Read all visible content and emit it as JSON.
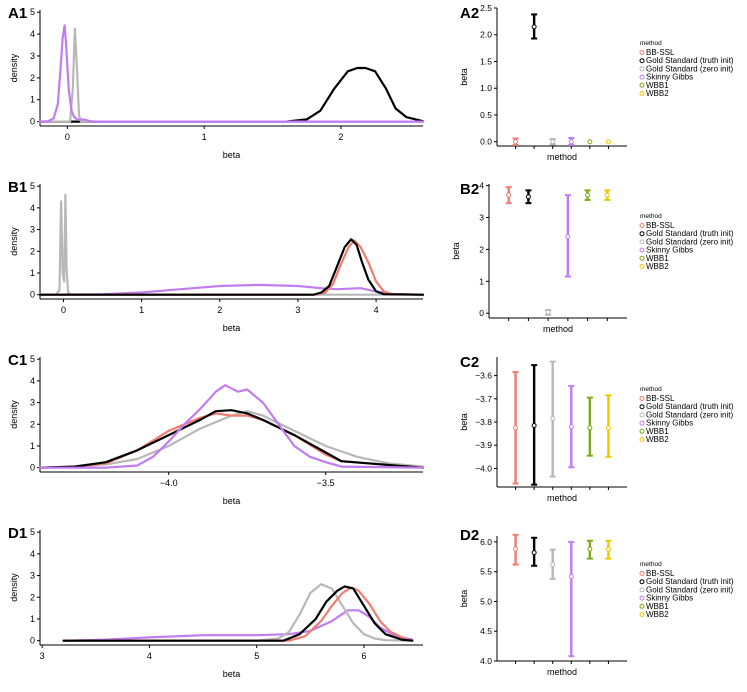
{
  "method_colors": {
    "BB-SSL": "#f07c72",
    "Gold Standard (truth init)": "#000000",
    "Gold Standard (zero init)": "#b8b8b8",
    "Skinny Gibbs": "#c17cf2",
    "WBB1": "#80a818",
    "WBB2": "#f0c800"
  },
  "chart_data": [
    {
      "panel": "A1",
      "type": "line",
      "xlabel": "beta",
      "ylabel": "density",
      "xlim": [
        -0.2,
        2.6
      ],
      "ylim": [
        -0.2,
        5.1
      ],
      "xticks": [
        0,
        1,
        2
      ],
      "yticks": [
        0,
        1,
        2,
        3,
        4,
        5
      ],
      "series": [
        {
          "method": "Gold Standard (truth init)",
          "x": [
            -0.2,
            1.6,
            1.75,
            1.85,
            1.95,
            2.05,
            2.12,
            2.18,
            2.25,
            2.33,
            2.4,
            2.48,
            2.6
          ],
          "y": [
            0,
            0,
            0.1,
            0.5,
            1.5,
            2.3,
            2.45,
            2.45,
            2.3,
            1.5,
            0.6,
            0.2,
            0.02
          ]
        },
        {
          "method": "Gold Standard (zero init)",
          "x": [
            -0.2,
            0.02,
            0.04,
            0.055,
            0.07,
            0.085,
            0.1,
            2.6
          ],
          "y": [
            0,
            0,
            1.5,
            4.25,
            2.5,
            0.3,
            0,
            0
          ]
        },
        {
          "method": "Skinny Gibbs",
          "x": [
            -0.2,
            -0.14,
            -0.1,
            -0.07,
            -0.05,
            -0.035,
            -0.02,
            -0.01,
            0.01,
            0.03,
            0.05,
            0.08,
            0.12,
            0.16,
            0.2,
            2.6
          ],
          "y": [
            0,
            0.02,
            0.15,
            0.8,
            2.4,
            3.8,
            4.4,
            3.6,
            1.5,
            0.5,
            0.2,
            0.08,
            0.1,
            0.03,
            0,
            0
          ]
        }
      ]
    },
    {
      "panel": "A2",
      "type": "errorbar",
      "xlabel": "method",
      "ylabel": "beta",
      "ylim": [
        -0.08,
        2.5
      ],
      "yticks": [
        0.0,
        0.5,
        1.0,
        1.5,
        2.0,
        2.5
      ],
      "ytick_labels": [
        "0.0",
        "0.5",
        "1.0",
        "1.5",
        "2.0",
        "2.5"
      ],
      "categories": [
        "BB-SSL",
        "Gold Standard (truth init)",
        "Gold Standard (zero init)",
        "Skinny Gibbs",
        "WBB1",
        "WBB2"
      ],
      "values": [
        0.0,
        2.15,
        0.0,
        0.0,
        0.0,
        0.0
      ],
      "lower": [
        -0.06,
        1.93,
        -0.05,
        -0.06,
        0,
        0
      ],
      "upper": [
        0.06,
        2.38,
        0.05,
        0.07,
        0,
        0
      ]
    },
    {
      "panel": "B1",
      "type": "line",
      "xlabel": "beta",
      "ylabel": "density",
      "xlim": [
        -0.3,
        4.6
      ],
      "ylim": [
        -0.2,
        5.1
      ],
      "xticks": [
        0,
        1,
        2,
        3,
        4
      ],
      "yticks": [
        0,
        1,
        2,
        3,
        4,
        5
      ],
      "series": [
        {
          "method": "Gold Standard (zero init)",
          "x": [
            -0.3,
            -0.1,
            -0.05,
            -0.03,
            -0.01,
            0.01,
            0.025,
            0.04,
            0.06,
            0.1,
            4.6
          ],
          "y": [
            0,
            0,
            0.2,
            4.3,
            1.0,
            0.6,
            4.6,
            1.2,
            0.1,
            0,
            0
          ]
        },
        {
          "method": "Skinny Gibbs",
          "x": [
            -0.3,
            0.5,
            1.0,
            1.5,
            2.0,
            2.5,
            3.0,
            3.3,
            3.5,
            3.8,
            4.0,
            4.2,
            4.6
          ],
          "y": [
            0,
            0.02,
            0.1,
            0.25,
            0.4,
            0.45,
            0.4,
            0.3,
            0.25,
            0.3,
            0.15,
            0.03,
            0
          ]
        },
        {
          "method": "BB-SSL",
          "x": [
            -0.3,
            3.2,
            3.35,
            3.45,
            3.55,
            3.65,
            3.72,
            3.8,
            3.9,
            4.0,
            4.1,
            4.2,
            4.6
          ],
          "y": [
            0,
            0,
            0.1,
            0.5,
            1.4,
            2.2,
            2.5,
            2.2,
            1.5,
            0.6,
            0.15,
            0.02,
            0
          ]
        },
        {
          "method": "Gold Standard (truth init)",
          "x": [
            -0.3,
            3.2,
            3.3,
            3.4,
            3.5,
            3.6,
            3.68,
            3.75,
            3.82,
            3.9,
            4.0,
            4.1,
            4.6
          ],
          "y": [
            0,
            0,
            0.1,
            0.4,
            1.3,
            2.2,
            2.55,
            2.3,
            1.5,
            0.7,
            0.15,
            0.02,
            0
          ]
        }
      ]
    },
    {
      "panel": "B2",
      "type": "errorbar",
      "xlabel": "method",
      "ylabel": "beta",
      "ylim": [
        -0.15,
        4.05
      ],
      "yticks": [
        0,
        1,
        2,
        3,
        4
      ],
      "ytick_labels": [
        "0",
        "1",
        "2",
        "3",
        "4"
      ],
      "categories": [
        "BB-SSL",
        "Gold Standard (truth init)",
        "Gold Standard (zero init)",
        "Skinny Gibbs",
        "WBB1",
        "WBB2"
      ],
      "values": [
        3.7,
        3.65,
        0.03,
        2.4,
        3.7,
        3.7
      ],
      "lower": [
        3.45,
        3.45,
        -0.05,
        1.15,
        3.55,
        3.55
      ],
      "upper": [
        3.95,
        3.85,
        0.1,
        3.7,
        3.85,
        3.85
      ]
    },
    {
      "panel": "C1",
      "type": "line",
      "xlabel": "beta",
      "ylabel": "density",
      "xlim": [
        -4.41,
        -3.19
      ],
      "ylim": [
        -0.2,
        5.1
      ],
      "xticks": [
        -4.0,
        -3.5
      ],
      "xtick_labels": [
        "−4.0",
        "−3.5"
      ],
      "yticks": [
        0,
        1,
        2,
        3,
        4,
        5
      ],
      "series": [
        {
          "method": "Gold Standard (zero init)",
          "x": [
            -4.41,
            -4.3,
            -4.2,
            -4.1,
            -4.0,
            -3.9,
            -3.8,
            -3.75,
            -3.7,
            -3.6,
            -3.5,
            -3.4,
            -3.3,
            -3.19
          ],
          "y": [
            0,
            0.05,
            0.15,
            0.4,
            1.0,
            1.8,
            2.4,
            2.6,
            2.4,
            1.7,
            1.0,
            0.5,
            0.2,
            0.05
          ]
        },
        {
          "method": "BB-SSL",
          "x": [
            -4.41,
            -4.3,
            -4.2,
            -4.1,
            -4.0,
            -3.9,
            -3.85,
            -3.8,
            -3.75,
            -3.7,
            -3.6,
            -3.5,
            -3.45,
            -3.19
          ],
          "y": [
            0,
            0.05,
            0.2,
            0.8,
            1.7,
            2.3,
            2.5,
            2.4,
            2.4,
            2.2,
            1.5,
            0.6,
            0.3,
            0
          ]
        },
        {
          "method": "Gold Standard (truth init)",
          "x": [
            -4.41,
            -4.3,
            -4.2,
            -4.1,
            -4.0,
            -3.9,
            -3.85,
            -3.8,
            -3.75,
            -3.7,
            -3.6,
            -3.5,
            -3.45,
            -3.19
          ],
          "y": [
            0,
            0.05,
            0.25,
            0.8,
            1.5,
            2.2,
            2.6,
            2.65,
            2.5,
            2.2,
            1.5,
            0.7,
            0.3,
            0
          ]
        },
        {
          "method": "Skinny Gibbs",
          "x": [
            -4.41,
            -4.2,
            -4.1,
            -4.05,
            -4.0,
            -3.95,
            -3.9,
            -3.85,
            -3.82,
            -3.78,
            -3.75,
            -3.7,
            -3.65,
            -3.6,
            -3.55,
            -3.5,
            -3.45,
            -3.19
          ],
          "y": [
            0,
            0,
            0.1,
            0.5,
            1.2,
            2.0,
            2.7,
            3.5,
            3.8,
            3.5,
            3.6,
            3.0,
            2.0,
            1.0,
            0.5,
            0.25,
            0.05,
            0
          ]
        }
      ]
    },
    {
      "panel": "C2",
      "type": "errorbar",
      "xlabel": "method",
      "ylabel": "beta",
      "ylim": [
        -4.08,
        -3.52
      ],
      "yticks": [
        -4.0,
        -3.9,
        -3.8,
        -3.7,
        -3.6
      ],
      "ytick_labels": [
        "−4.0",
        "−3.9",
        "−3.8",
        "−3.7",
        "−3.6"
      ],
      "categories": [
        "BB-SSL",
        "Gold Standard (truth init)",
        "Gold Standard (zero init)",
        "Skinny Gibbs",
        "WBB1",
        "WBB2"
      ],
      "values": [
        -3.825,
        -3.815,
        -3.785,
        -3.82,
        -3.825,
        -3.825
      ],
      "lower": [
        -4.065,
        -4.07,
        -4.035,
        -3.995,
        -3.945,
        -3.95
      ],
      "upper": [
        -3.585,
        -3.555,
        -3.54,
        -3.645,
        -3.695,
        -3.685
      ]
    },
    {
      "panel": "D1",
      "type": "line",
      "xlabel": "beta",
      "ylabel": "density",
      "xlim": [
        2.98,
        6.55
      ],
      "ylim": [
        -0.2,
        5.1
      ],
      "xticks": [
        3,
        4,
        5,
        6
      ],
      "yticks": [
        0,
        1,
        2,
        3,
        4,
        5
      ],
      "series": [
        {
          "method": "Skinny Gibbs",
          "x": [
            3.2,
            3.6,
            4.0,
            4.5,
            5.0,
            5.3,
            5.5,
            5.7,
            5.85,
            5.95,
            6.05,
            6.15,
            6.3,
            6.45
          ],
          "y": [
            0,
            0.05,
            0.15,
            0.25,
            0.25,
            0.3,
            0.45,
            0.9,
            1.4,
            1.4,
            1.1,
            0.6,
            0.2,
            0.05
          ]
        },
        {
          "method": "Gold Standard (zero init)",
          "x": [
            3.2,
            5.0,
            5.2,
            5.3,
            5.4,
            5.5,
            5.6,
            5.7,
            5.8,
            5.9,
            6.0,
            6.1,
            6.2,
            6.45
          ],
          "y": [
            0,
            0,
            0.1,
            0.4,
            1.2,
            2.2,
            2.6,
            2.4,
            1.6,
            0.8,
            0.3,
            0.1,
            0.02,
            0
          ]
        },
        {
          "method": "BB-SSL",
          "x": [
            3.2,
            5.3,
            5.45,
            5.6,
            5.7,
            5.8,
            5.88,
            5.95,
            6.05,
            6.15,
            6.25,
            6.4,
            6.45
          ],
          "y": [
            0,
            0,
            0.2,
            0.9,
            1.6,
            2.2,
            2.45,
            2.3,
            1.7,
            0.9,
            0.4,
            0.05,
            0
          ]
        },
        {
          "method": "Gold Standard (truth init)",
          "x": [
            3.2,
            5.25,
            5.4,
            5.55,
            5.65,
            5.75,
            5.82,
            5.9,
            6.0,
            6.1,
            6.2,
            6.35,
            6.45
          ],
          "y": [
            0,
            0,
            0.3,
            1.0,
            1.8,
            2.3,
            2.5,
            2.4,
            1.6,
            0.8,
            0.3,
            0.05,
            0
          ]
        }
      ]
    },
    {
      "panel": "D2",
      "type": "errorbar",
      "xlabel": "method",
      "ylabel": "beta",
      "ylim": [
        4.0,
        6.1
      ],
      "yticks": [
        4.0,
        4.5,
        5.0,
        5.5,
        6.0
      ],
      "ytick_labels": [
        "4.0",
        "4.5",
        "5.0",
        "5.5",
        "6.0"
      ],
      "categories": [
        "BB-SSL",
        "Gold Standard (truth init)",
        "Gold Standard (zero init)",
        "Skinny Gibbs",
        "WBB1",
        "WBB2"
      ],
      "values": [
        5.88,
        5.82,
        5.62,
        5.42,
        5.88,
        5.88
      ],
      "lower": [
        5.62,
        5.6,
        5.38,
        4.08,
        5.72,
        5.72
      ],
      "upper": [
        6.12,
        6.07,
        5.87,
        6.0,
        6.02,
        6.02
      ]
    }
  ],
  "legend": {
    "title": "method",
    "labels": [
      "BB-SSL",
      "Gold Standard (truth init)",
      "Gold Standard (zero init)",
      "Skinny Gibbs",
      "WBB1",
      "WBB2"
    ]
  }
}
